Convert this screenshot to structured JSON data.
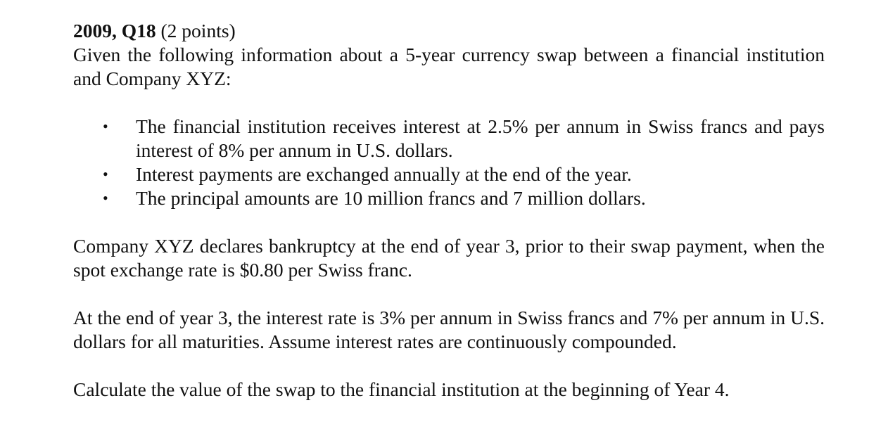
{
  "question": {
    "header": "2009, Q18",
    "points": "(2 points)",
    "intro": "Given the following information about a 5-year currency swap between a financial institution and Company XYZ:",
    "bullets": [
      "The financial institution receives interest at 2.5% per annum in Swiss francs and pays interest of 8% per annum in U.S. dollars.",
      "Interest payments are exchanged annually at the end of the year.",
      "The principal amounts are 10 million francs and 7 million dollars."
    ],
    "bullet_glyph": "•",
    "bankruptcy": "Company XYZ declares bankruptcy at the end of year 3, prior to their swap payment, when the spot exchange rate is $0.80 per Swiss franc.",
    "rates": "At the end of year 3, the interest rate is 3% per annum in Swiss francs and 7% per annum in U.S. dollars for all maturities. Assume interest rates are continuously compounded.",
    "task": "Calculate the value of the swap to the financial institution at the beginning of Year 4."
  }
}
